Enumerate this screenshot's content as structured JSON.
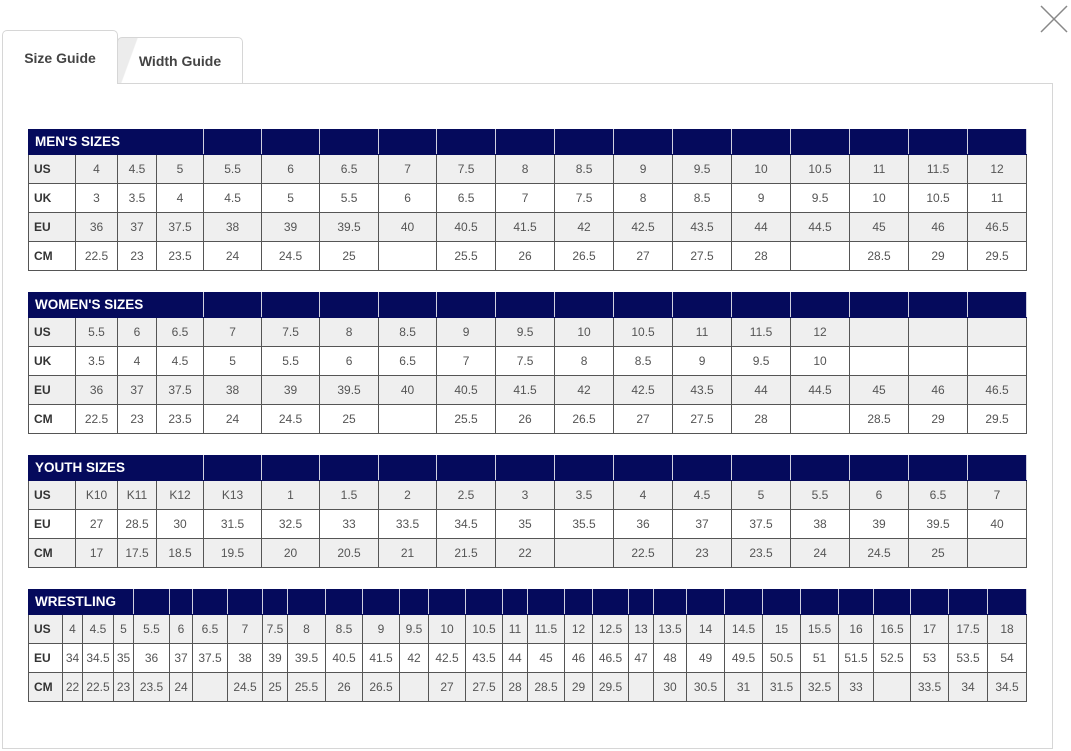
{
  "tabs": [
    {
      "label": "Size Guide",
      "active": true
    },
    {
      "label": "Width Guide",
      "active": false
    }
  ],
  "close_icon": "close-x-icon",
  "colors": {
    "header": "#050a5c",
    "stripe": "#efefef"
  },
  "tables": [
    {
      "title": "MEN'S SIZES",
      "rows": [
        {
          "label": "US",
          "values": [
            "4",
            "4.5",
            "5",
            "5.5",
            "6",
            "6.5",
            "7",
            "7.5",
            "8",
            "8.5",
            "9",
            "9.5",
            "10",
            "10.5",
            "11",
            "11.5",
            "12"
          ]
        },
        {
          "label": "UK",
          "values": [
            "3",
            "3.5",
            "4",
            "4.5",
            "5",
            "5.5",
            "6",
            "6.5",
            "7",
            "7.5",
            "8",
            "8.5",
            "9",
            "9.5",
            "10",
            "10.5",
            "11"
          ]
        },
        {
          "label": "EU",
          "values": [
            "36",
            "37",
            "37.5",
            "38",
            "39",
            "39.5",
            "40",
            "40.5",
            "41.5",
            "42",
            "42.5",
            "43.5",
            "44",
            "44.5",
            "45",
            "46",
            "46.5"
          ]
        },
        {
          "label": "CM",
          "values": [
            "22.5",
            "23",
            "23.5",
            "24",
            "24.5",
            "25",
            "",
            "25.5",
            "26",
            "26.5",
            "27",
            "27.5",
            "28",
            "",
            "28.5",
            "29",
            "29.5"
          ]
        }
      ]
    },
    {
      "title": "WOMEN'S SIZES",
      "rows": [
        {
          "label": "US",
          "values": [
            "5.5",
            "6",
            "6.5",
            "7",
            "7.5",
            "8",
            "8.5",
            "9",
            "9.5",
            "10",
            "10.5",
            "11",
            "11.5",
            "12",
            "",
            "",
            ""
          ]
        },
        {
          "label": "UK",
          "values": [
            "3.5",
            "4",
            "4.5",
            "5",
            "5.5",
            "6",
            "6.5",
            "7",
            "7.5",
            "8",
            "8.5",
            "9",
            "9.5",
            "10",
            "",
            "",
            ""
          ]
        },
        {
          "label": "EU",
          "values": [
            "36",
            "37",
            "37.5",
            "38",
            "39",
            "39.5",
            "40",
            "40.5",
            "41.5",
            "42",
            "42.5",
            "43.5",
            "44",
            "44.5",
            "45",
            "46",
            "46.5"
          ]
        },
        {
          "label": "CM",
          "values": [
            "22.5",
            "23",
            "23.5",
            "24",
            "24.5",
            "25",
            "",
            "25.5",
            "26",
            "26.5",
            "27",
            "27.5",
            "28",
            "",
            "28.5",
            "29",
            "29.5"
          ]
        }
      ]
    },
    {
      "title": "YOUTH SIZES",
      "rows": [
        {
          "label": "US",
          "values": [
            "K10",
            "K11",
            "K12",
            "K13",
            "1",
            "1.5",
            "2",
            "2.5",
            "3",
            "3.5",
            "4",
            "4.5",
            "5",
            "5.5",
            "6",
            "6.5",
            "7"
          ]
        },
        {
          "label": "EU",
          "values": [
            "27",
            "28.5",
            "30",
            "31.5",
            "32.5",
            "33",
            "33.5",
            "34.5",
            "35",
            "35.5",
            "36",
            "37",
            "37.5",
            "38",
            "39",
            "39.5",
            "40"
          ]
        },
        {
          "label": "CM",
          "values": [
            "17",
            "17.5",
            "18.5",
            "19.5",
            "20",
            "20.5",
            "21",
            "21.5",
            "22",
            "",
            "22.5",
            "23",
            "23.5",
            "24",
            "24.5",
            "25",
            ""
          ]
        }
      ]
    },
    {
      "title": "WRESTLING",
      "rows": [
        {
          "label": "US",
          "values": [
            "4",
            "4.5",
            "5",
            "5.5",
            "6",
            "6.5",
            "7",
            "7.5",
            "8",
            "8.5",
            "9",
            "9.5",
            "10",
            "10.5",
            "11",
            "11.5",
            "12",
            "12.5",
            "13",
            "13.5",
            "14",
            "14.5",
            "15",
            "15.5",
            "16",
            "16.5",
            "17",
            "17.5",
            "18"
          ]
        },
        {
          "label": "EU",
          "values": [
            "34",
            "34.5",
            "35",
            "36",
            "37",
            "37.5",
            "38",
            "39",
            "39.5",
            "40.5",
            "41.5",
            "42",
            "42.5",
            "43.5",
            "44",
            "45",
            "46",
            "46.5",
            "47",
            "48",
            "49",
            "49.5",
            "50.5",
            "51",
            "51.5",
            "52.5",
            "53",
            "53.5",
            "54"
          ]
        },
        {
          "label": "CM",
          "values": [
            "22",
            "22.5",
            "23",
            "23.5",
            "24",
            "",
            "24.5",
            "25",
            "25.5",
            "26",
            "26.5",
            "",
            "27",
            "27.5",
            "28",
            "28.5",
            "29",
            "29.5",
            "",
            "30",
            "30.5",
            "31",
            "31.5",
            "32.5",
            "33",
            "",
            "33.5",
            "34",
            "34.5"
          ]
        }
      ]
    }
  ]
}
